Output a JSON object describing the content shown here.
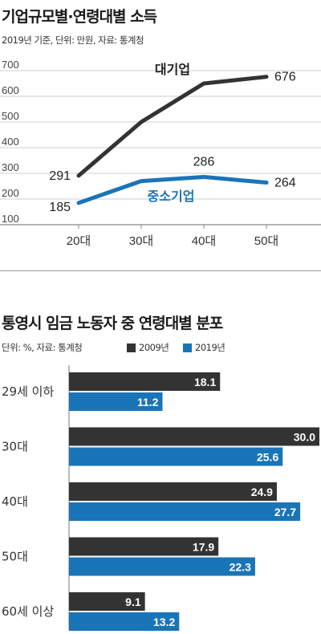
{
  "colors": {
    "dark": "#333333",
    "blue": "#1a74b8"
  },
  "chart_data": [
    {
      "type": "line",
      "title": "기업규모별·연령대별 소득",
      "subtitle": "2019년 기준, 단위: 만원, 자료: 통계청",
      "categories": [
        "20대",
        "30대",
        "40대",
        "50대"
      ],
      "y_ticks": [
        "700",
        "600",
        "500",
        "400",
        "300",
        "200",
        "100"
      ],
      "ylim": [
        100,
        700
      ],
      "grid": true,
      "series": [
        {
          "name": "대기업",
          "values": [
            291,
            500,
            650,
            676
          ],
          "labels": [
            "291",
            "",
            "",
            "676"
          ],
          "color": "#333333"
        },
        {
          "name": "중소기업",
          "values": [
            185,
            270,
            286,
            264
          ],
          "labels": [
            "185",
            "",
            "286",
            "264"
          ],
          "color": "#1a74b8"
        }
      ]
    },
    {
      "type": "bar",
      "orientation": "horizontal",
      "title": "통영시 임금 노동자 중 연령대별 분포",
      "subtitle": "단위: %, 자료: 통계청",
      "categories": [
        "29세 이하",
        "30대",
        "40대",
        "50대",
        "60세 이상"
      ],
      "xlim": [
        0,
        30
      ],
      "series": [
        {
          "name": "2009년",
          "values": [
            18.1,
            30.0,
            24.9,
            17.9,
            9.1
          ],
          "labels": [
            "18.1",
            "30.0",
            "24.9",
            "17.9",
            "9.1"
          ],
          "color": "#333333"
        },
        {
          "name": "2019년",
          "values": [
            11.2,
            25.6,
            27.7,
            22.3,
            13.2
          ],
          "labels": [
            "11.2",
            "25.6",
            "27.7",
            "22.3",
            "13.2"
          ],
          "color": "#1a74b8"
        }
      ]
    }
  ]
}
